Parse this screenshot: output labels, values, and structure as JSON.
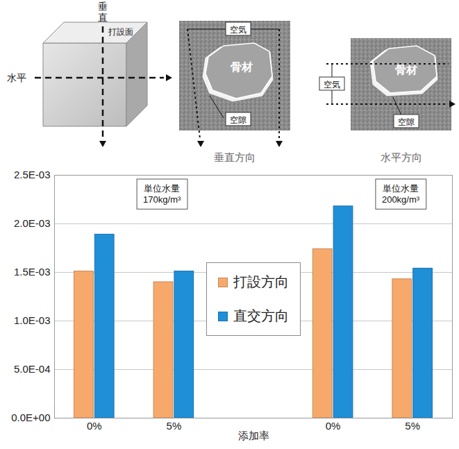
{
  "chart_data": {
    "type": "bar",
    "categories": [
      "0%",
      "5%",
      "0%",
      "5%"
    ],
    "series": [
      {
        "name": "打設方向",
        "color": "#f7a96b",
        "values": [
          0.00151,
          0.0014,
          0.00174,
          0.00143
        ]
      },
      {
        "name": "直交方向",
        "color": "#1f8fd8",
        "values": [
          0.00189,
          0.00151,
          0.00218,
          0.00154
        ]
      }
    ],
    "xlabel": "添加率",
    "ylim": [
      0,
      0.0025
    ],
    "yticks": [
      {
        "value": 0,
        "label": "0.0E+00"
      },
      {
        "value": 0.0005,
        "label": "5.0E-04"
      },
      {
        "value": 0.001,
        "label": "1.0E-03"
      },
      {
        "value": 0.0015,
        "label": "1.5E-03"
      },
      {
        "value": 0.002,
        "label": "2.0E-03"
      },
      {
        "value": 0.0025,
        "label": "2.5E-03"
      }
    ],
    "grid": true,
    "legend": "center",
    "annotations": [
      {
        "text": "単位水量\n170kg/m³"
      },
      {
        "text": "単位水量\n200kg/m³"
      }
    ]
  },
  "diagram": {
    "cube": {
      "vertical": "垂直",
      "horizontal": "水平",
      "casting_face": "打設面"
    },
    "sections": [
      {
        "caption": "垂直方向",
        "air": "空気",
        "aggregate": "骨材",
        "void": "空隙"
      },
      {
        "caption": "水平方向",
        "air": "空気",
        "aggregate": "骨材",
        "void": "空隙"
      }
    ]
  }
}
